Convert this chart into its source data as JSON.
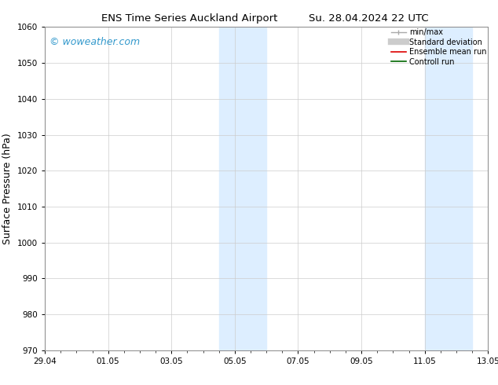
{
  "title_left": "ENS Time Series Auckland Airport",
  "title_right": "Su. 28.04.2024 22 UTC",
  "ylabel": "Surface Pressure (hPa)",
  "ylim": [
    970,
    1060
  ],
  "yticks": [
    970,
    980,
    990,
    1000,
    1010,
    1020,
    1030,
    1040,
    1050,
    1060
  ],
  "xtick_labels": [
    "29.04",
    "01.05",
    "03.05",
    "05.05",
    "07.05",
    "09.05",
    "11.05",
    "13.05"
  ],
  "xtick_positions": [
    0,
    2,
    4,
    6,
    8,
    10,
    12,
    14
  ],
  "xlim": [
    0,
    14
  ],
  "shaded_regions": [
    {
      "xstart": 5.5,
      "xend": 7.0
    },
    {
      "xstart": 12.0,
      "xend": 13.5
    }
  ],
  "shaded_color": "#ddeeff",
  "watermark_text": "© woweather.com",
  "watermark_color": "#3399cc",
  "legend_items": [
    {
      "label": "min/max",
      "color": "#aaaaaa"
    },
    {
      "label": "Standard deviation",
      "color": "#cccccc"
    },
    {
      "label": "Ensemble mean run",
      "color": "#dd0000"
    },
    {
      "label": "Controll run",
      "color": "#006600"
    }
  ],
  "bg_color": "#ffffff",
  "grid_color": "#cccccc",
  "tick_fontsize": 7.5,
  "ylabel_fontsize": 9,
  "title_fontsize": 9.5,
  "legend_fontsize": 7,
  "watermark_fontsize": 9
}
